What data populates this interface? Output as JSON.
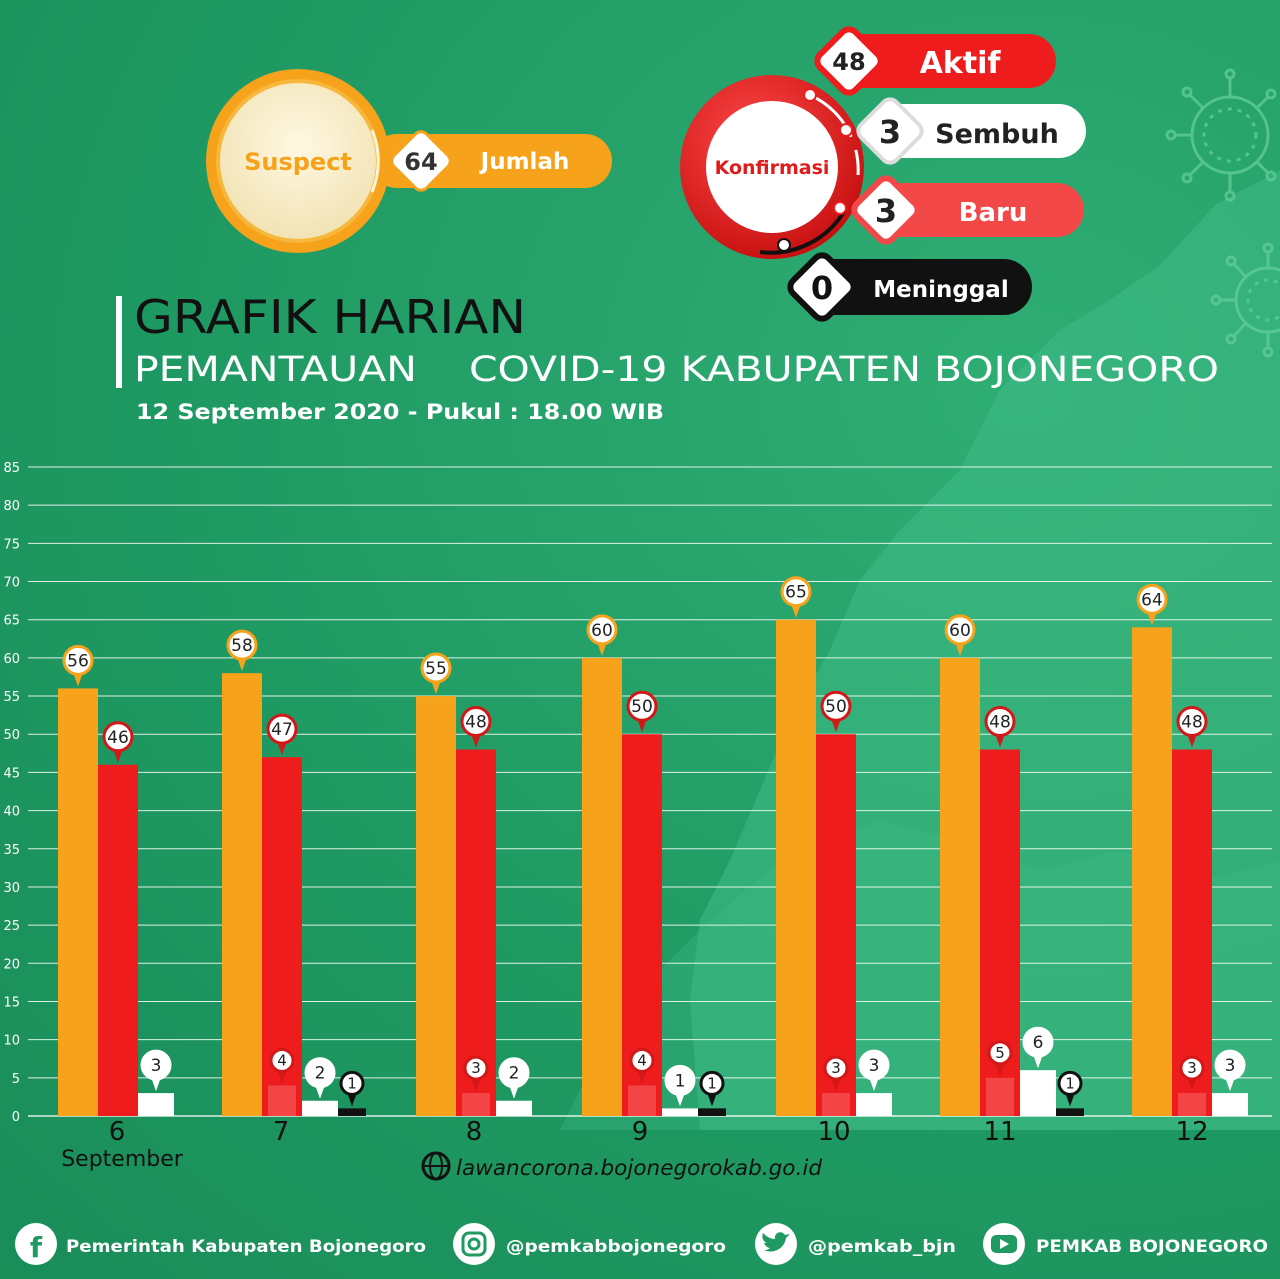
{
  "suspect": {
    "circle_label": "Suspect",
    "count": "64",
    "label": "Jumlah"
  },
  "konfirmasi": {
    "circle_label": "Konfirmasi",
    "aktif": {
      "count": "48",
      "label": "Aktif"
    },
    "sembuh": {
      "count": "3",
      "label": "Sembuh"
    },
    "baru": {
      "count": "3",
      "label": "Baru"
    },
    "meninggal": {
      "count": "0",
      "label": "Meninggal"
    }
  },
  "header": {
    "title": "GRAFIK HARIAN",
    "subtitle": "PEMANTAUAN    COVID-19 KABUPATEN BOJONEGORO",
    "datetime": "12 September 2020 - Pukul : 18.00 WIB"
  },
  "website": "lawancorona.bojonegorokab.go.id",
  "footer": {
    "facebook": "Pemerintah Kabupaten Bojonegoro",
    "instagram": "@pemkabbojonegoro",
    "twitter": "@pemkab_bjn",
    "youtube": "PEMKAB BOJONEGORO"
  },
  "colors": {
    "background": "#1f9a63",
    "suspect": "#f7a21b",
    "aktif": "#ee1c1c",
    "baru": "#f24848",
    "sembuh": "#ffffff",
    "meninggal": "#111111"
  },
  "chart_data": {
    "type": "bar",
    "categories": [
      "6",
      "7",
      "8",
      "9",
      "10",
      "11",
      "12"
    ],
    "first_category_sublabel": "September",
    "ylim": [
      0,
      85
    ],
    "yticks": [
      0,
      5,
      10,
      15,
      20,
      25,
      30,
      35,
      40,
      45,
      50,
      55,
      60,
      65,
      70,
      75,
      80,
      85
    ],
    "grid": true,
    "series": [
      {
        "key": "suspect",
        "values": [
          56,
          58,
          55,
          60,
          65,
          60,
          64
        ]
      },
      {
        "key": "aktif",
        "values": [
          46,
          47,
          48,
          50,
          50,
          48,
          48
        ]
      },
      {
        "key": "baru",
        "values": [
          0,
          4,
          3,
          4,
          3,
          5,
          3
        ]
      },
      {
        "key": "sembuh",
        "values": [
          3,
          2,
          2,
          1,
          3,
          6,
          3
        ]
      },
      {
        "key": "meninggal",
        "values": [
          0,
          1,
          0,
          1,
          0,
          1,
          0
        ]
      }
    ]
  }
}
